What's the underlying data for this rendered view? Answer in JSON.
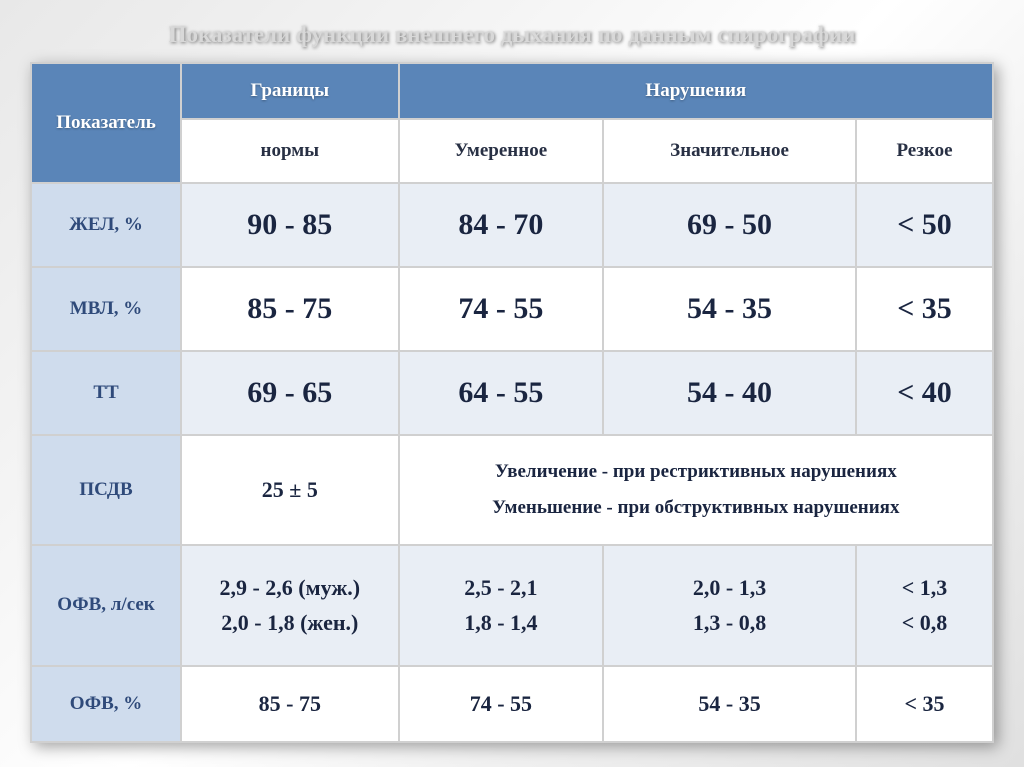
{
  "title": "Показатели функции внешнего дыхания по данным спирографии",
  "header": {
    "c1": "Показатель",
    "c2": "Границы",
    "c3": "Нарушения"
  },
  "subheader": {
    "c2": "нормы",
    "c3": "Умеренное",
    "c4": "Значительное",
    "c5": "Резкое"
  },
  "rows": {
    "zhel": {
      "label": "ЖЕЛ, %",
      "norm": "90 - 85",
      "moderate": "84 - 70",
      "significant": "69 - 50",
      "severe": "< 50"
    },
    "mvl": {
      "label": "МВЛ, %",
      "norm": "85 - 75",
      "moderate": "74 - 55",
      "significant": "54 - 35",
      "severe": "< 35"
    },
    "tt": {
      "label": "ТТ",
      "norm": "69 - 65",
      "moderate": "64 - 55",
      "significant": "54 - 40",
      "severe": "< 40"
    }
  },
  "psdv": {
    "label": "ПСДВ",
    "norm": "25 ± 5",
    "note_line1": "Увеличение - при рестриктивных нарушениях",
    "note_line2": "Уменьшение - при обструктивных нарушениях"
  },
  "ofv_ls": {
    "label": "ОФВ, л/сек",
    "norm_m": "2,9 - 2,6 (муж.)",
    "norm_f": "2,0 - 1,8 (жен.)",
    "mod1": "2,5 - 2,1",
    "mod2": "1,8 - 1,4",
    "sig1": "2,0 - 1,3",
    "sig2": "1,3 - 0,8",
    "sev1": "< 1,3",
    "sev2": "< 0,8"
  },
  "ofv_pct": {
    "label": "ОФВ, %",
    "norm": "85 - 75",
    "moderate": "74 - 55",
    "significant": "54 - 35",
    "severe": "< 35"
  },
  "style": {
    "header_bg": "#5a85b8",
    "header_fg": "#ffffff",
    "rowlabel_bg": "#cfdced",
    "rowlabel_fg": "#2f4a7a",
    "odd_row_bg": "#e9eef5",
    "even_row_bg": "#ffffff",
    "value_color": "#1a2540",
    "border_color": "#d0d0d0",
    "title_color": "#d8d8d8",
    "big_fontsize": 30,
    "mid_fontsize": 22,
    "label_fontsize": 19,
    "title_fontsize": 23
  }
}
